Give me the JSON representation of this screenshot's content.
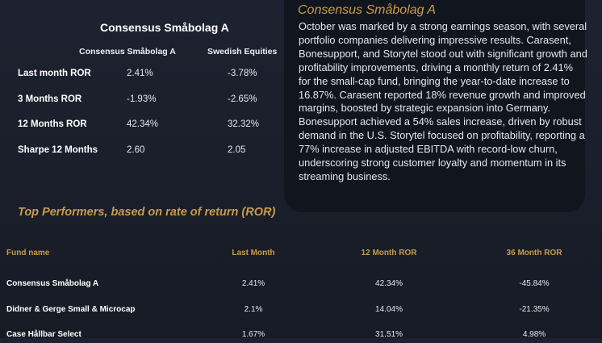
{
  "card": {
    "title": "Consensus Småbolag A",
    "commentary": "October was marked by a strong earnings season, with several portfolio companies delivering impressive results. Carasent, Bonesupport, and Storytel stood out with significant growth and profitability improvements, driving a monthly return of 2.41% for the small-cap fund, bringing the year-to-date increase to 16.87%. Carasent reported 18% revenue growth and improved margins, boosted by strategic expansion into Germany. Bonesupport achieved a 54% sales increase, driven by robust demand in the U.S. Storytel focused on profitability, reporting a 77% increase in adjusted EBITDA with record-low churn, underscoring strong customer loyalty and momentum in its streaming business."
  },
  "summary": {
    "title": "Consensus Småbolag A",
    "col_a": "Consensus Småbolag A",
    "col_b": "Swedish Equities",
    "rows": [
      {
        "label": "Last month ROR",
        "a": "2.41%",
        "b": "-3.78%"
      },
      {
        "label": "3 Months ROR",
        "a": "-1.93%",
        "b": "-2.65%"
      },
      {
        "label": "12 Months ROR",
        "a": "42.34%",
        "b": "32.32%"
      },
      {
        "label": "Sharpe 12 Months",
        "a": "2.60",
        "b": "2.05"
      }
    ]
  },
  "top": {
    "title": "Top Performers, based on rate of return (ROR)",
    "headers": {
      "name": "Fund name",
      "last": "Last Month",
      "r12": "12 Month ROR",
      "r36": "36 Month ROR"
    },
    "rows": [
      {
        "name": "Consensus Småbolag A",
        "last": "2.41%",
        "r12": "42.34%",
        "r36": "-45.84%"
      },
      {
        "name": "Didner & Gerge Small & Microcap",
        "last": "2.1%",
        "r12": "14.04%",
        "r36": "-21.35%"
      },
      {
        "name": "Case Hållbar Select",
        "last": "1.67%",
        "r12": "31.51%",
        "r36": "4.98%"
      }
    ]
  }
}
